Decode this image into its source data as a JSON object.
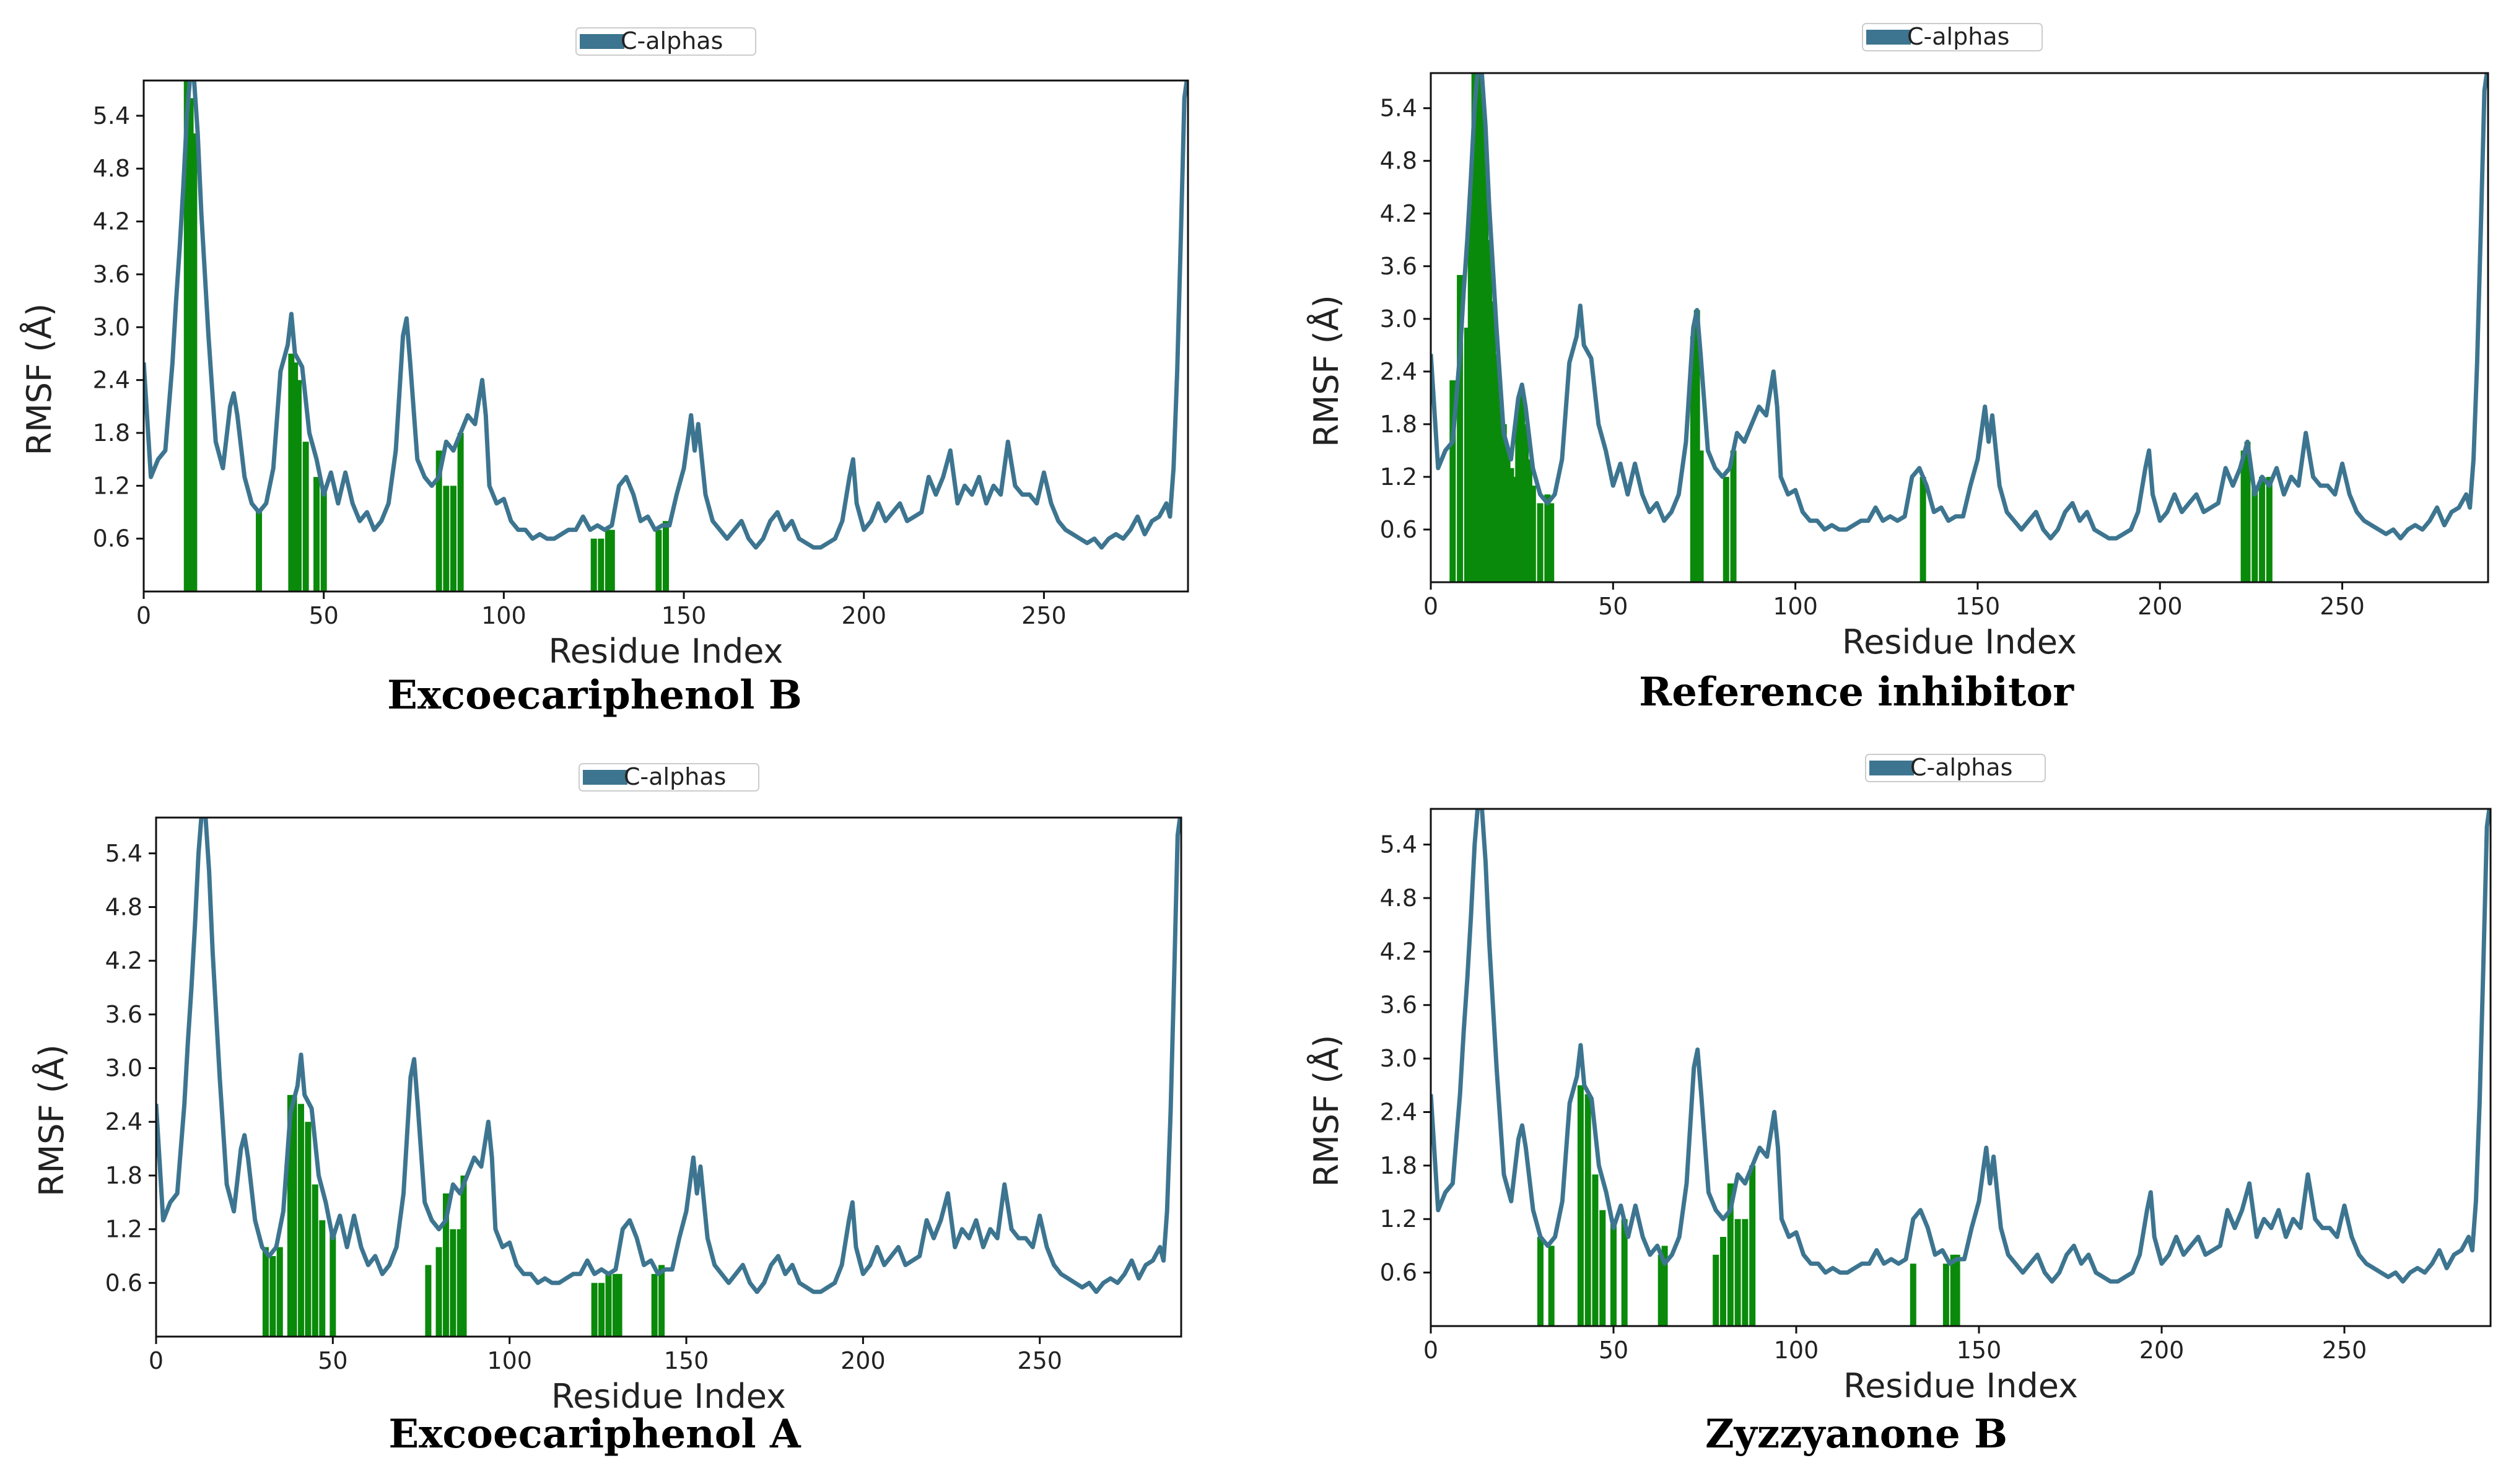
{
  "chart_data": [
    {
      "type": "line",
      "panel": "top-left",
      "caption": "Excoecariphenol B",
      "xlabel": "Residue Index",
      "ylabel": "RMSF (Å)",
      "legend": "C-alphas",
      "legend_position": "top-center",
      "xlim": [
        0,
        290
      ],
      "ylim": [
        0,
        5.8
      ],
      "xticks": [
        0,
        50,
        100,
        150,
        200,
        250
      ],
      "yticks": [
        0.6,
        1.2,
        1.8,
        2.4,
        3.0,
        3.6,
        4.2,
        4.8,
        5.4
      ],
      "line_color": "#3d7590",
      "contact_color": "#0a8a0a",
      "contacts": [
        {
          "x": 12,
          "h": 5.8
        },
        {
          "x": 13,
          "h": 5.6
        },
        {
          "x": 14,
          "h": 5.2
        },
        {
          "x": 32,
          "h": 0.9
        },
        {
          "x": 41,
          "h": 2.7
        },
        {
          "x": 42,
          "h": 2.6
        },
        {
          "x": 43,
          "h": 2.4
        },
        {
          "x": 45,
          "h": 1.7
        },
        {
          "x": 48,
          "h": 1.3
        },
        {
          "x": 50,
          "h": 1.2
        },
        {
          "x": 82,
          "h": 1.6
        },
        {
          "x": 84,
          "h": 1.2
        },
        {
          "x": 86,
          "h": 1.2
        },
        {
          "x": 88,
          "h": 1.8
        },
        {
          "x": 125,
          "h": 0.6
        },
        {
          "x": 127,
          "h": 0.6
        },
        {
          "x": 129,
          "h": 0.7
        },
        {
          "x": 130,
          "h": 0.7
        },
        {
          "x": 143,
          "h": 0.7
        },
        {
          "x": 145,
          "h": 0.8
        }
      ]
    },
    {
      "type": "line",
      "panel": "top-right",
      "caption": "Reference inhibitor",
      "xlabel": "Residue Index",
      "ylabel": "RMSF (Å)",
      "legend": "C-alphas",
      "legend_position": "top-center",
      "xlim": [
        0,
        290
      ],
      "ylim": [
        0,
        5.8
      ],
      "xticks": [
        0,
        50,
        100,
        150,
        200,
        250
      ],
      "yticks": [
        0.6,
        1.2,
        1.8,
        2.4,
        3.0,
        3.6,
        4.2,
        4.8,
        5.4
      ],
      "line_color": "#3d7590",
      "contact_color": "#0a8a0a",
      "contacts": [
        {
          "x": 6,
          "h": 2.3
        },
        {
          "x": 8,
          "h": 3.5
        },
        {
          "x": 10,
          "h": 2.9
        },
        {
          "x": 11,
          "h": 4.3
        },
        {
          "x": 12,
          "h": 5.8
        },
        {
          "x": 13,
          "h": 5.8
        },
        {
          "x": 14,
          "h": 5.6
        },
        {
          "x": 15,
          "h": 4.8
        },
        {
          "x": 16,
          "h": 3.9
        },
        {
          "x": 17,
          "h": 3.2
        },
        {
          "x": 18,
          "h": 2.6
        },
        {
          "x": 19,
          "h": 2.1
        },
        {
          "x": 20,
          "h": 1.8
        },
        {
          "x": 21,
          "h": 1.5
        },
        {
          "x": 22,
          "h": 1.3
        },
        {
          "x": 23,
          "h": 1.2
        },
        {
          "x": 24,
          "h": 2.0
        },
        {
          "x": 25,
          "h": 2.2
        },
        {
          "x": 26,
          "h": 1.8
        },
        {
          "x": 27,
          "h": 1.4
        },
        {
          "x": 28,
          "h": 1.1
        },
        {
          "x": 30,
          "h": 0.9
        },
        {
          "x": 32,
          "h": 1.0
        },
        {
          "x": 33,
          "h": 0.9
        },
        {
          "x": 72,
          "h": 2.8
        },
        {
          "x": 73,
          "h": 3.1
        },
        {
          "x": 74,
          "h": 1.5
        },
        {
          "x": 81,
          "h": 1.2
        },
        {
          "x": 83,
          "h": 1.5
        },
        {
          "x": 135,
          "h": 1.2
        },
        {
          "x": 223,
          "h": 1.5
        },
        {
          "x": 224,
          "h": 1.6
        },
        {
          "x": 226,
          "h": 1.1
        },
        {
          "x": 228,
          "h": 1.2
        },
        {
          "x": 230,
          "h": 1.2
        }
      ]
    },
    {
      "type": "line",
      "panel": "bottom-left",
      "caption": "Excoecariphenol A",
      "xlabel": "Residue Index",
      "ylabel": "RMSF (Å)",
      "legend": "C-alphas",
      "legend_position": "top-center",
      "xlim": [
        0,
        290
      ],
      "ylim": [
        0,
        5.8
      ],
      "xticks": [
        0,
        50,
        100,
        150,
        200,
        250
      ],
      "yticks": [
        0.6,
        1.2,
        1.8,
        2.4,
        3.0,
        3.6,
        4.2,
        4.8,
        5.4
      ],
      "line_color": "#3d7590",
      "contact_color": "#0a8a0a",
      "contacts": [
        {
          "x": 31,
          "h": 1.0
        },
        {
          "x": 33,
          "h": 0.9
        },
        {
          "x": 35,
          "h": 1.0
        },
        {
          "x": 38,
          "h": 2.7
        },
        {
          "x": 39,
          "h": 2.7
        },
        {
          "x": 41,
          "h": 2.6
        },
        {
          "x": 43,
          "h": 2.4
        },
        {
          "x": 45,
          "h": 1.7
        },
        {
          "x": 47,
          "h": 1.3
        },
        {
          "x": 50,
          "h": 1.2
        },
        {
          "x": 77,
          "h": 0.8
        },
        {
          "x": 80,
          "h": 1.0
        },
        {
          "x": 82,
          "h": 1.6
        },
        {
          "x": 84,
          "h": 1.2
        },
        {
          "x": 86,
          "h": 1.2
        },
        {
          "x": 87,
          "h": 1.8
        },
        {
          "x": 124,
          "h": 0.6
        },
        {
          "x": 126,
          "h": 0.6
        },
        {
          "x": 128,
          "h": 0.7
        },
        {
          "x": 130,
          "h": 0.7
        },
        {
          "x": 131,
          "h": 0.7
        },
        {
          "x": 141,
          "h": 0.7
        },
        {
          "x": 143,
          "h": 0.8
        }
      ]
    },
    {
      "type": "line",
      "panel": "bottom-right",
      "caption": "Zyzzyanone B",
      "xlabel": "Residue Index",
      "ylabel": "RMSF (Å)",
      "legend": "C-alphas",
      "legend_position": "top-center",
      "xlim": [
        0,
        290
      ],
      "ylim": [
        0,
        5.8
      ],
      "xticks": [
        0,
        50,
        100,
        150,
        200,
        250
      ],
      "yticks": [
        0.6,
        1.2,
        1.8,
        2.4,
        3.0,
        3.6,
        4.2,
        4.8,
        5.4
      ],
      "line_color": "#3d7590",
      "contact_color": "#0a8a0a",
      "contacts": [
        {
          "x": 30,
          "h": 1.0
        },
        {
          "x": 33,
          "h": 0.9
        },
        {
          "x": 41,
          "h": 2.7
        },
        {
          "x": 43,
          "h": 2.6
        },
        {
          "x": 45,
          "h": 1.7
        },
        {
          "x": 47,
          "h": 1.3
        },
        {
          "x": 50,
          "h": 1.2
        },
        {
          "x": 53,
          "h": 1.2
        },
        {
          "x": 63,
          "h": 0.8
        },
        {
          "x": 64,
          "h": 0.9
        },
        {
          "x": 78,
          "h": 0.8
        },
        {
          "x": 80,
          "h": 1.0
        },
        {
          "x": 82,
          "h": 1.6
        },
        {
          "x": 84,
          "h": 1.2
        },
        {
          "x": 86,
          "h": 1.2
        },
        {
          "x": 88,
          "h": 1.8
        },
        {
          "x": 132,
          "h": 0.7
        },
        {
          "x": 141,
          "h": 0.7
        },
        {
          "x": 143,
          "h": 0.8
        },
        {
          "x": 144,
          "h": 0.8
        }
      ]
    }
  ],
  "profile": {
    "x": [
      0,
      2,
      4,
      6,
      8,
      9,
      10,
      11,
      12,
      13,
      14,
      15,
      16,
      18,
      20,
      22,
      24,
      25,
      26,
      28,
      30,
      32,
      34,
      36,
      38,
      40,
      41,
      42,
      44,
      46,
      48,
      50,
      52,
      54,
      56,
      58,
      60,
      62,
      64,
      66,
      68,
      70,
      72,
      73,
      74,
      76,
      78,
      80,
      82,
      84,
      86,
      88,
      90,
      92,
      94,
      95,
      96,
      98,
      100,
      102,
      104,
      106,
      108,
      110,
      112,
      114,
      116,
      118,
      120,
      122,
      124,
      126,
      128,
      130,
      132,
      134,
      136,
      138,
      140,
      142,
      144,
      146,
      148,
      150,
      152,
      153,
      154,
      156,
      158,
      160,
      162,
      164,
      166,
      168,
      170,
      172,
      174,
      176,
      178,
      180,
      182,
      184,
      186,
      188,
      190,
      192,
      194,
      196,
      197,
      198,
      200,
      202,
      204,
      206,
      208,
      210,
      212,
      214,
      216,
      218,
      220,
      222,
      224,
      226,
      228,
      230,
      232,
      234,
      236,
      238,
      240,
      242,
      244,
      246,
      248,
      250,
      252,
      254,
      256,
      258,
      260,
      262,
      264,
      266,
      268,
      270,
      272,
      274,
      276,
      278,
      280,
      282,
      284,
      285,
      286,
      287,
      288,
      289,
      290
    ],
    "y": [
      2.6,
      1.3,
      1.5,
      1.6,
      2.6,
      3.3,
      3.9,
      4.6,
      5.4,
      5.9,
      5.8,
      5.2,
      4.3,
      2.9,
      1.7,
      1.4,
      2.1,
      2.25,
      2.0,
      1.3,
      1.0,
      0.9,
      1.0,
      1.4,
      2.5,
      2.8,
      3.15,
      2.7,
      2.55,
      1.8,
      1.5,
      1.1,
      1.35,
      1.0,
      1.35,
      1.0,
      0.8,
      0.9,
      0.7,
      0.8,
      1.0,
      1.6,
      2.9,
      3.1,
      2.6,
      1.5,
      1.3,
      1.2,
      1.3,
      1.7,
      1.6,
      1.8,
      2.0,
      1.9,
      2.4,
      2.0,
      1.2,
      1.0,
      1.05,
      0.8,
      0.7,
      0.7,
      0.6,
      0.65,
      0.6,
      0.6,
      0.65,
      0.7,
      0.7,
      0.85,
      0.7,
      0.75,
      0.7,
      0.75,
      1.2,
      1.3,
      1.1,
      0.8,
      0.85,
      0.7,
      0.75,
      0.75,
      1.1,
      1.4,
      2.0,
      1.6,
      1.9,
      1.1,
      0.8,
      0.7,
      0.6,
      0.7,
      0.8,
      0.6,
      0.5,
      0.6,
      0.8,
      0.9,
      0.7,
      0.8,
      0.6,
      0.55,
      0.5,
      0.5,
      0.55,
      0.6,
      0.8,
      1.3,
      1.5,
      1.0,
      0.7,
      0.8,
      1.0,
      0.8,
      0.9,
      1.0,
      0.8,
      0.85,
      0.9,
      1.3,
      1.1,
      1.3,
      1.6,
      1.0,
      1.2,
      1.1,
      1.3,
      1.0,
      1.2,
      1.1,
      1.7,
      1.2,
      1.1,
      1.1,
      1.0,
      1.35,
      1.0,
      0.8,
      0.7,
      0.65,
      0.6,
      0.55,
      0.6,
      0.5,
      0.6,
      0.65,
      0.6,
      0.7,
      0.85,
      0.65,
      0.8,
      0.85,
      1.0,
      0.85,
      1.4,
      2.5,
      4.0,
      5.6,
      5.9
    ]
  }
}
